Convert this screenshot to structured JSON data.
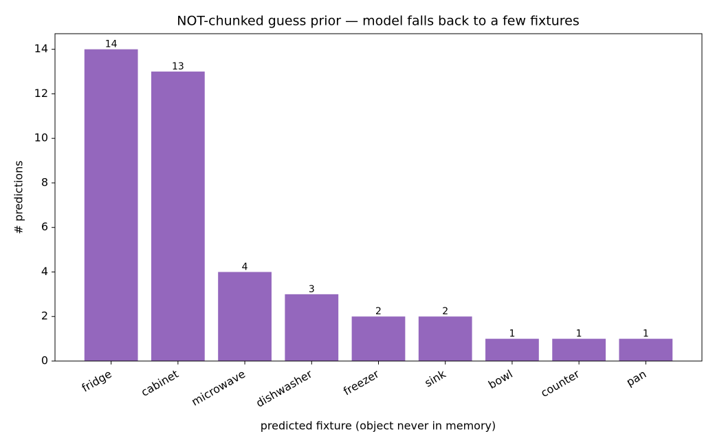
{
  "chart_data": {
    "type": "bar",
    "title": "NOT-chunked guess prior — model falls back to a few fixtures",
    "x_label": "predicted fixture (object never in memory)",
    "y_label": "# predictions",
    "categories": [
      "fridge",
      "cabinet",
      "microwave",
      "dishwasher",
      "freezer",
      "sink",
      "bowl",
      "counter",
      "pan"
    ],
    "values": [
      14,
      13,
      4,
      3,
      2,
      2,
      1,
      1,
      1
    ],
    "color": "#9467bd",
    "ylim": [
      0,
      14.7
    ],
    "yticks": [
      0,
      2,
      4,
      6,
      8,
      10,
      12,
      14
    ],
    "grid": false
  }
}
